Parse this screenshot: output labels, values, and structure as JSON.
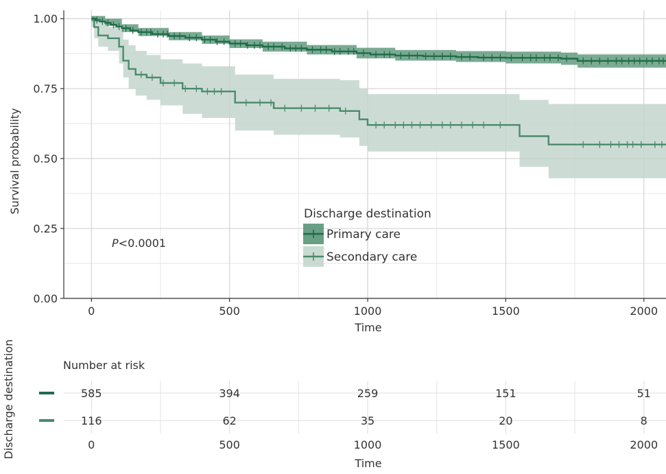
{
  "chart_data": {
    "type": "line",
    "subtype": "kaplan-meier",
    "title": "",
    "xlabel": "Time",
    "ylabel": "Survival probability",
    "xlim": [
      -100,
      2080
    ],
    "ylim": [
      0,
      1.03
    ],
    "x_ticks": [
      0,
      500,
      1000,
      1500,
      2000
    ],
    "x_tick_labels": [
      "0",
      "500",
      "1000",
      "1500",
      "2000"
    ],
    "y_ticks": [
      0,
      0.25,
      0.5,
      0.75,
      1.0
    ],
    "y_tick_labels": [
      "0.00",
      "0.25",
      "0.50",
      "0.75",
      "1.00"
    ],
    "grid": true,
    "annotation": {
      "italic": "P",
      "rest": "<0.0001"
    },
    "legend": {
      "title": "Discharge destination",
      "placement": "center",
      "items": [
        "Primary care",
        "Secondary care"
      ]
    },
    "series": [
      {
        "name": "Primary care",
        "color": "#1e6b4a",
        "band_color": "#4f8e6e",
        "steps": [
          [
            0,
            1.0
          ],
          [
            15,
            0.995
          ],
          [
            30,
            0.99
          ],
          [
            50,
            0.985
          ],
          [
            70,
            0.978
          ],
          [
            90,
            0.972
          ],
          [
            110,
            0.966
          ],
          [
            140,
            0.958
          ],
          [
            170,
            0.952
          ],
          [
            220,
            0.945
          ],
          [
            280,
            0.938
          ],
          [
            340,
            0.932
          ],
          [
            400,
            0.925
          ],
          [
            450,
            0.918
          ],
          [
            500,
            0.911
          ],
          [
            560,
            0.905
          ],
          [
            620,
            0.9
          ],
          [
            700,
            0.894
          ],
          [
            780,
            0.889
          ],
          [
            870,
            0.883
          ],
          [
            960,
            0.877
          ],
          [
            1010,
            0.872
          ],
          [
            1100,
            0.868
          ],
          [
            1200,
            0.866
          ],
          [
            1320,
            0.863
          ],
          [
            1400,
            0.861
          ],
          [
            1500,
            0.86
          ],
          [
            1700,
            0.857
          ],
          [
            1760,
            0.849
          ],
          [
            2080,
            0.849
          ]
        ],
        "lower": [
          [
            0,
            0.99
          ],
          [
            50,
            0.975
          ],
          [
            110,
            0.952
          ],
          [
            170,
            0.938
          ],
          [
            280,
            0.923
          ],
          [
            400,
            0.91
          ],
          [
            500,
            0.895
          ],
          [
            620,
            0.882
          ],
          [
            780,
            0.872
          ],
          [
            960,
            0.858
          ],
          [
            1100,
            0.85
          ],
          [
            1320,
            0.845
          ],
          [
            1500,
            0.84
          ],
          [
            1700,
            0.835
          ],
          [
            1760,
            0.825
          ],
          [
            2080,
            0.82
          ]
        ],
        "upper": [
          [
            0,
            1.01
          ],
          [
            50,
            1.0
          ],
          [
            110,
            0.98
          ],
          [
            170,
            0.967
          ],
          [
            280,
            0.952
          ],
          [
            400,
            0.94
          ],
          [
            500,
            0.926
          ],
          [
            620,
            0.918
          ],
          [
            780,
            0.906
          ],
          [
            960,
            0.896
          ],
          [
            1100,
            0.888
          ],
          [
            1320,
            0.884
          ],
          [
            1500,
            0.882
          ],
          [
            1700,
            0.879
          ],
          [
            1760,
            0.872
          ],
          [
            2080,
            0.872
          ]
        ],
        "censor_x": [
          20,
          40,
          60,
          80,
          100,
          125,
          150,
          180,
          200,
          215,
          240,
          260,
          275,
          300,
          320,
          355,
          380,
          410,
          430,
          455,
          480,
          520,
          540,
          565,
          590,
          610,
          640,
          660,
          690,
          720,
          740,
          760,
          800,
          830,
          850,
          880,
          900,
          930,
          950,
          985,
          1030,
          1060,
          1080,
          1120,
          1150,
          1180,
          1210,
          1240,
          1270,
          1300,
          1340,
          1370,
          1420,
          1450,
          1480,
          1520,
          1560,
          1590,
          1610,
          1640,
          1660,
          1690,
          1720,
          1780,
          1810,
          1840,
          1870,
          1900,
          1920,
          1945,
          1965,
          1985,
          2010,
          2030,
          2055,
          2070
        ],
        "risk": [
          585,
          394,
          259,
          151,
          51
        ]
      },
      {
        "name": "Secondary care",
        "color": "#4a8a6c",
        "band_color": "#c3d6cc",
        "steps": [
          [
            0,
            1.0
          ],
          [
            10,
            0.97
          ],
          [
            25,
            0.94
          ],
          [
            60,
            0.93
          ],
          [
            100,
            0.9
          ],
          [
            115,
            0.85
          ],
          [
            135,
            0.82
          ],
          [
            160,
            0.8
          ],
          [
            200,
            0.79
          ],
          [
            250,
            0.77
          ],
          [
            330,
            0.75
          ],
          [
            400,
            0.74
          ],
          [
            520,
            0.7
          ],
          [
            660,
            0.68
          ],
          [
            900,
            0.67
          ],
          [
            970,
            0.64
          ],
          [
            1000,
            0.62
          ],
          [
            1550,
            0.58
          ],
          [
            1655,
            0.55
          ],
          [
            2080,
            0.55
          ]
        ],
        "lower": [
          [
            0,
            0.97
          ],
          [
            10,
            0.93
          ],
          [
            25,
            0.9
          ],
          [
            60,
            0.885
          ],
          [
            100,
            0.84
          ],
          [
            115,
            0.79
          ],
          [
            135,
            0.75
          ],
          [
            160,
            0.725
          ],
          [
            200,
            0.71
          ],
          [
            250,
            0.69
          ],
          [
            330,
            0.66
          ],
          [
            400,
            0.645
          ],
          [
            520,
            0.6
          ],
          [
            660,
            0.585
          ],
          [
            900,
            0.575
          ],
          [
            970,
            0.545
          ],
          [
            1000,
            0.525
          ],
          [
            1550,
            0.47
          ],
          [
            1655,
            0.43
          ],
          [
            2080,
            0.43
          ]
        ],
        "upper": [
          [
            0,
            1.01
          ],
          [
            10,
            1.0
          ],
          [
            25,
            0.99
          ],
          [
            60,
            0.97
          ],
          [
            100,
            0.965
          ],
          [
            115,
            0.925
          ],
          [
            135,
            0.905
          ],
          [
            160,
            0.885
          ],
          [
            200,
            0.87
          ],
          [
            250,
            0.855
          ],
          [
            330,
            0.84
          ],
          [
            400,
            0.83
          ],
          [
            520,
            0.8
          ],
          [
            660,
            0.785
          ],
          [
            900,
            0.78
          ],
          [
            970,
            0.75
          ],
          [
            1000,
            0.73
          ],
          [
            1550,
            0.71
          ],
          [
            1655,
            0.695
          ],
          [
            2080,
            0.695
          ]
        ],
        "censor_x": [
          180,
          220,
          260,
          300,
          340,
          380,
          420,
          445,
          470,
          560,
          610,
          650,
          700,
          760,
          810,
          860,
          920,
          1030,
          1060,
          1100,
          1130,
          1160,
          1190,
          1230,
          1270,
          1300,
          1340,
          1380,
          1420,
          1480,
          1780,
          1840,
          1880,
          1910,
          1940,
          1960,
          1990,
          2040,
          2065
        ],
        "risk": [
          116,
          62,
          35,
          20,
          8
        ]
      }
    ],
    "risk_table": {
      "title": "Number at risk",
      "ylabel": "Discharge destination",
      "xlabel": "Time",
      "x_ticks": [
        0,
        500,
        1000,
        1500,
        2000
      ],
      "x_tick_labels": [
        "0",
        "500",
        "1000",
        "1500",
        "2000"
      ]
    }
  }
}
